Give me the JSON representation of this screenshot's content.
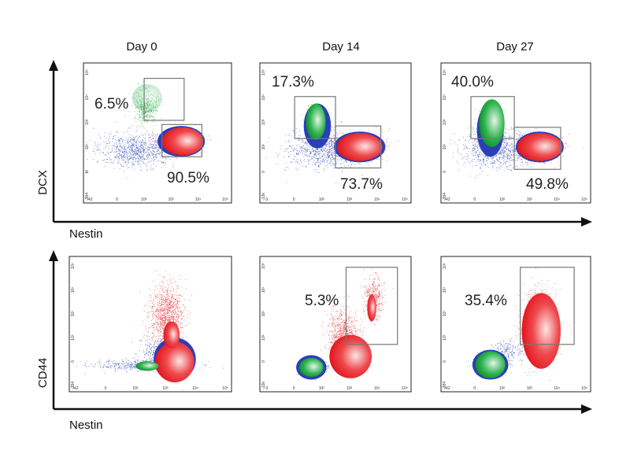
{
  "figure": {
    "column_titles": [
      "Day 0",
      "Day 14",
      "Day 27"
    ],
    "top_row": {
      "y_axis_label": "DCX",
      "x_axis_label": "Nestin"
    },
    "bottom_row": {
      "y_axis_label": "CD44",
      "x_axis_label": "Nestin"
    }
  },
  "colors": {
    "blue_population": "#2a3fb8",
    "green_population": "#1aa03a",
    "red_population": "#e8262b",
    "gate": "#777777",
    "axis": "#111111"
  },
  "chart_data": [
    {
      "type": "scatter",
      "title": "Day 0",
      "xlabel": "Nestin",
      "ylabel": "DCX",
      "x_ticks": [
        "-42",
        "0",
        "10²",
        "10³",
        "10⁴",
        "10⁵"
      ],
      "y_ticks": [
        "-384",
        "M",
        "10²",
        "10³",
        "10⁴",
        "10⁵"
      ],
      "gates": [
        {
          "population": "green",
          "percent_label": "6.5%",
          "percent": 6.5
        },
        {
          "population": "red",
          "percent_label": "90.5%",
          "percent": 90.5
        }
      ]
    },
    {
      "type": "scatter",
      "title": "Day 14",
      "xlabel": "Nestin",
      "ylabel": "DCX",
      "x_ticks": [
        "-3",
        "0",
        "10²",
        "10³",
        "10⁴",
        "10⁵"
      ],
      "y_ticks": [
        "-12k",
        "0",
        "10²",
        "10³",
        "10⁴",
        "10⁵"
      ],
      "gates": [
        {
          "population": "green",
          "percent_label": "17.3%",
          "percent": 17.3
        },
        {
          "population": "red",
          "percent_label": "73.7%",
          "percent": 73.7
        }
      ]
    },
    {
      "type": "scatter",
      "title": "Day 27",
      "xlabel": "Nestin",
      "ylabel": "DCX",
      "x_ticks": [
        "-42",
        "0",
        "10²",
        "10³",
        "10⁴",
        "10⁵"
      ],
      "y_ticks": [
        "-384",
        "0",
        "10²",
        "10³",
        "10⁴",
        "10⁵"
      ],
      "gates": [
        {
          "population": "green",
          "percent_label": "40.0%",
          "percent": 40.0
        },
        {
          "population": "red",
          "percent_label": "49.8%",
          "percent": 49.8
        }
      ]
    },
    {
      "type": "scatter",
      "title": "Day 0",
      "xlabel": "Nestin",
      "ylabel": "CD44",
      "x_ticks": [
        "-42",
        "0",
        "10²",
        "10³",
        "10⁴",
        "10⁵"
      ],
      "y_ticks": [
        "-384",
        "0",
        "10²",
        "10³",
        "10⁴",
        "10⁵"
      ],
      "gates": []
    },
    {
      "type": "scatter",
      "title": "Day 14",
      "xlabel": "Nestin",
      "ylabel": "CD44",
      "x_ticks": [
        "-3",
        "0",
        "10²",
        "10³",
        "10⁴",
        "10⁵"
      ],
      "y_ticks": [
        "-12k",
        "0",
        "10²",
        "10³",
        "10⁴",
        "10⁵"
      ],
      "gates": [
        {
          "population": "red",
          "percent_label": "5.3%",
          "percent": 5.3
        }
      ]
    },
    {
      "type": "scatter",
      "title": "Day 27",
      "xlabel": "Nestin",
      "ylabel": "CD44",
      "x_ticks": [
        "-42",
        "0",
        "10²",
        "10³",
        "10⁴",
        "10⁵"
      ],
      "y_ticks": [
        "-384",
        "0",
        "10²",
        "10³",
        "10⁴",
        "10⁵"
      ],
      "gates": [
        {
          "population": "red",
          "percent_label": "35.4%",
          "percent": 35.4
        }
      ]
    }
  ]
}
